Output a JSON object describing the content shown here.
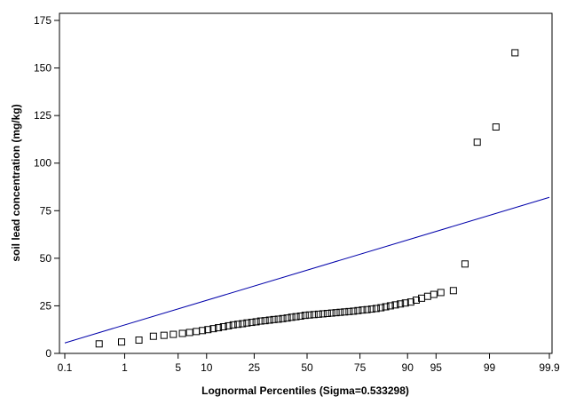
{
  "chart_data": {
    "type": "scatter",
    "title": "",
    "xlabel": "Lognormal Percentiles (Sigma=0.533298)",
    "ylabel": "soil lead concentration (mg/kg)",
    "x_scale": "normal-probability",
    "xlim": [
      0.1,
      99.9
    ],
    "ylim": [
      0,
      175
    ],
    "x_ticks": [
      0.1,
      1,
      5,
      10,
      25,
      50,
      75,
      90,
      95,
      99,
      99.9
    ],
    "x_tick_labels": [
      "0.1",
      "1",
      "5",
      "10",
      "25",
      "50",
      "75",
      "90",
      "95",
      "99",
      "99.9"
    ],
    "y_ticks": [
      0,
      25,
      50,
      75,
      100,
      125,
      150,
      175
    ],
    "grid": false,
    "legend": "none",
    "colors": {
      "fit_line": "#0000aa",
      "markers": "#000000"
    },
    "series": [
      {
        "marker": "open-square",
        "x": [
          0.4,
          0.9,
          1.6,
          2.5,
          3.4,
          4.4,
          5.6,
          6.7,
          7.9,
          9.1,
          10.3,
          11.6,
          12.9,
          14.3,
          15.8,
          17.3,
          18.9,
          20.5,
          22.2,
          24.0,
          25.8,
          27.7,
          29.6,
          31.6,
          33.6,
          35.7,
          37.8,
          40.0,
          42.2,
          44.4,
          46.7,
          49.0,
          51.2,
          53.5,
          55.8,
          58.0,
          60.2,
          62.3,
          64.4,
          66.4,
          68.4,
          70.4,
          72.3,
          74.2,
          76.0,
          77.8,
          79.5,
          81.1,
          82.7,
          84.2,
          85.6,
          87.0,
          88.3,
          89.5,
          90.7,
          91.8,
          92.8,
          93.8,
          94.7,
          95.6,
          96.9,
          97.8,
          98.5,
          99.2,
          99.6
        ],
        "y": [
          5,
          6,
          7,
          9,
          9.5,
          10,
          10.5,
          11,
          11.5,
          12,
          12.5,
          13,
          13.5,
          14,
          14.5,
          15,
          15.3,
          15.6,
          16,
          16.3,
          16.6,
          17,
          17.2,
          17.5,
          17.8,
          18,
          18.3,
          18.6,
          19,
          19.3,
          19.6,
          20,
          20.2,
          20.4,
          20.6,
          20.8,
          21,
          21.2,
          21.4,
          21.6,
          21.8,
          22,
          22.2,
          22.5,
          22.8,
          23,
          23.3,
          23.6,
          24,
          24.5,
          25,
          25.5,
          26,
          26.5,
          27,
          28,
          29,
          30,
          31,
          32,
          33,
          47,
          111,
          119,
          158
        ]
      }
    ],
    "fit_line": {
      "x": [
        0.1,
        99.9
      ],
      "y": [
        5.5,
        82
      ]
    }
  }
}
